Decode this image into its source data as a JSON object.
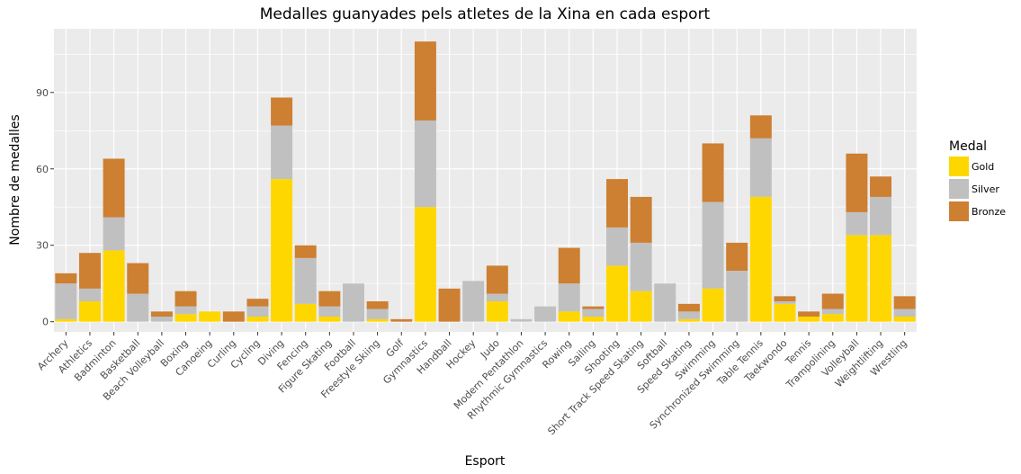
{
  "chart_data": {
    "type": "bar",
    "stacked": true,
    "title": "Medalles guanyades pels atletes de la Xina en cada esport",
    "xlabel": "Esport",
    "ylabel": "Nombre de medalles",
    "ylim": [
      -4,
      115
    ],
    "yticks": [
      0,
      30,
      60,
      90
    ],
    "grid": true,
    "legend_position": "right",
    "legend_title": "Medal",
    "categories": [
      "Archery",
      "Athletics",
      "Badminton",
      "Basketball",
      "Beach Volleyball",
      "Boxing",
      "Canoeing",
      "Curling",
      "Cycling",
      "Diving",
      "Fencing",
      "Figure Skating",
      "Football",
      "Freestyle Skiing",
      "Golf",
      "Gymnastics",
      "Handball",
      "Hockey",
      "Judo",
      "Modern Pentathlon",
      "Rhythmic Gymnastics",
      "Rowing",
      "Sailing",
      "Shooting",
      "Short Track Speed Skating",
      "Softball",
      "Speed Skating",
      "Swimming",
      "Synchronized Swimming",
      "Table Tennis",
      "Taekwondo",
      "Tennis",
      "Trampolining",
      "Volleyball",
      "Weightlifting",
      "Wrestling"
    ],
    "series": [
      {
        "name": "Gold",
        "color": "#FFD700",
        "values": [
          1,
          8,
          28,
          0,
          0,
          3,
          4,
          0,
          2,
          56,
          7,
          2,
          0,
          1,
          0,
          45,
          0,
          0,
          8,
          0,
          0,
          4,
          2,
          22,
          12,
          0,
          1,
          13,
          0,
          49,
          7,
          2,
          3,
          34,
          34,
          2
        ]
      },
      {
        "name": "Silver",
        "color": "#C0C0C0",
        "values": [
          14,
          5,
          13,
          11,
          2,
          3,
          0,
          0,
          4,
          21,
          18,
          4,
          15,
          4,
          0,
          34,
          0,
          16,
          3,
          1,
          6,
          11,
          3,
          15,
          19,
          15,
          3,
          34,
          20,
          23,
          1,
          0,
          2,
          9,
          15,
          3
        ]
      },
      {
        "name": "Bronze",
        "color": "#CD7F32",
        "values": [
          4,
          14,
          23,
          12,
          2,
          6,
          0,
          4,
          3,
          11,
          5,
          6,
          0,
          3,
          1,
          31,
          13,
          0,
          11,
          0,
          0,
          14,
          1,
          19,
          18,
          0,
          3,
          23,
          11,
          9,
          2,
          2,
          6,
          23,
          8,
          5
        ]
      }
    ]
  }
}
